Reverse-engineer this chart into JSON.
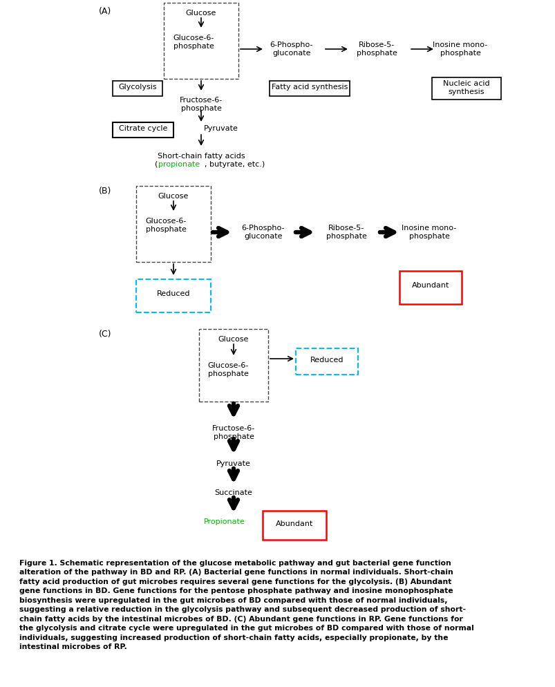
{
  "bg_color": "#ffffff",
  "fig_width": 8.04,
  "fig_height": 9.95,
  "propionate_color": "#00bb00",
  "abundant_border_color": "#ff0000",
  "reduced_border_color": "#00bbff",
  "dashed_box_color": "#555555",
  "solid_box_color": "#000000",
  "caption_line1": "Figure 1. Schematic representation of the glucose metabolic pathway and gut bacterial gene function",
  "caption_line2": "alteration of the pathway in BD and RP. (A) Bacterial gene functions in normal individuals. Short-chain",
  "caption_line3": "fatty acid production of gut microbes requires several gene functions for the glycolysis. (B) Abundant",
  "caption_line4": "gene functions in BD. Gene functions for the pentose phosphate pathway and inosine monophosphate",
  "caption_line5": "biosynthesis were upregulated in the gut microbes of BD compared with those of normal individuals,",
  "caption_line6": "suggesting a relative reduction in the glycolysis pathway and subsequent decreased production of short-",
  "caption_line7": "chain fatty acids by the intestinal microbes of BD. (C) Abundant gene functions in RP. Gene functions for",
  "caption_line8": "the glycolysis and citrate cycle were upregulated in the gut microbes of BD compared with those of normal",
  "caption_line9": "individuals, suggesting increased production of short-chain fatty acids, especially propionate, by the",
  "caption_line10": "intestinal microbes of RP."
}
